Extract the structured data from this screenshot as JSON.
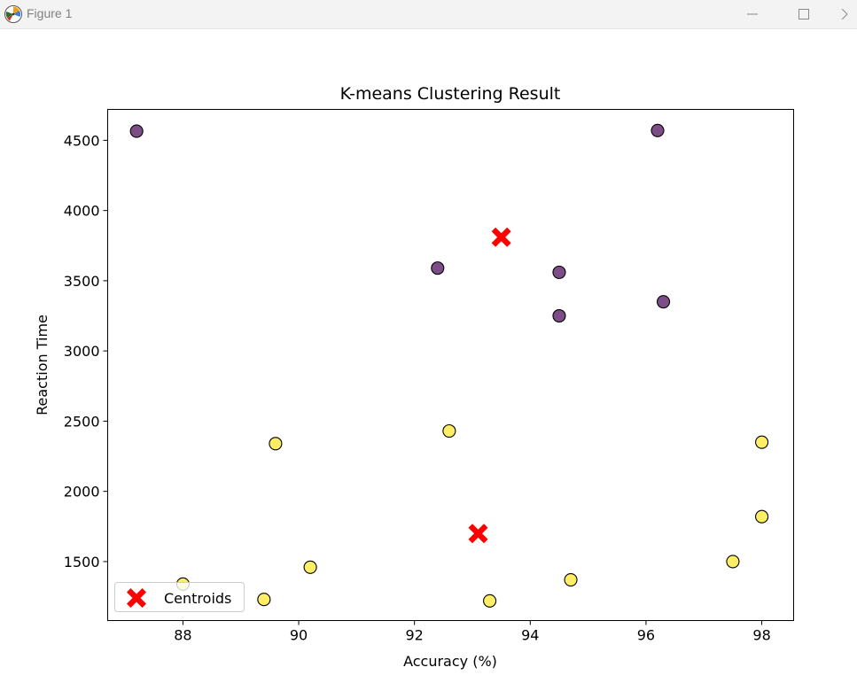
{
  "window": {
    "title": "Figure 1",
    "icons": {
      "app": "matplotlib-logo-icon",
      "minimize": "minimize-icon",
      "maximize": "maximize-icon",
      "close": "close-icon"
    }
  },
  "chart_data": {
    "type": "scatter",
    "title": "K-means Clustering Result",
    "xlabel": "Accuracy (%)",
    "ylabel": "Reaction Time",
    "xlim": [
      86.7,
      98.55
    ],
    "ylim": [
      1080,
      4720
    ],
    "xticks": [
      88,
      90,
      92,
      94,
      96,
      98
    ],
    "yticks": [
      1500,
      2000,
      2500,
      3000,
      3500,
      4000,
      4500
    ],
    "grid": false,
    "legend": {
      "location": "lower left",
      "entries": [
        "Centroids"
      ]
    },
    "colors": {
      "cluster_0": "#440154",
      "cluster_1": "#fde725",
      "centroid": "#ff0000",
      "edge": "#000000"
    },
    "series": [
      {
        "cluster": 0,
        "points": [
          {
            "x": 87.2,
            "y": 4565
          },
          {
            "x": 96.2,
            "y": 4570
          },
          {
            "x": 92.4,
            "y": 3590
          },
          {
            "x": 94.5,
            "y": 3560
          },
          {
            "x": 94.5,
            "y": 3250
          },
          {
            "x": 96.3,
            "y": 3350
          }
        ]
      },
      {
        "cluster": 1,
        "points": [
          {
            "x": 89.6,
            "y": 2340
          },
          {
            "x": 92.6,
            "y": 2430
          },
          {
            "x": 98.0,
            "y": 2350
          },
          {
            "x": 98.0,
            "y": 1820
          },
          {
            "x": 97.5,
            "y": 1500
          },
          {
            "x": 90.2,
            "y": 1460
          },
          {
            "x": 88.0,
            "y": 1340
          },
          {
            "x": 89.4,
            "y": 1230
          },
          {
            "x": 93.3,
            "y": 1220
          },
          {
            "x": 94.7,
            "y": 1370
          }
        ]
      },
      {
        "name": "Centroids",
        "points": [
          {
            "x": 93.5,
            "y": 3810
          },
          {
            "x": 93.1,
            "y": 1700
          }
        ]
      }
    ]
  }
}
